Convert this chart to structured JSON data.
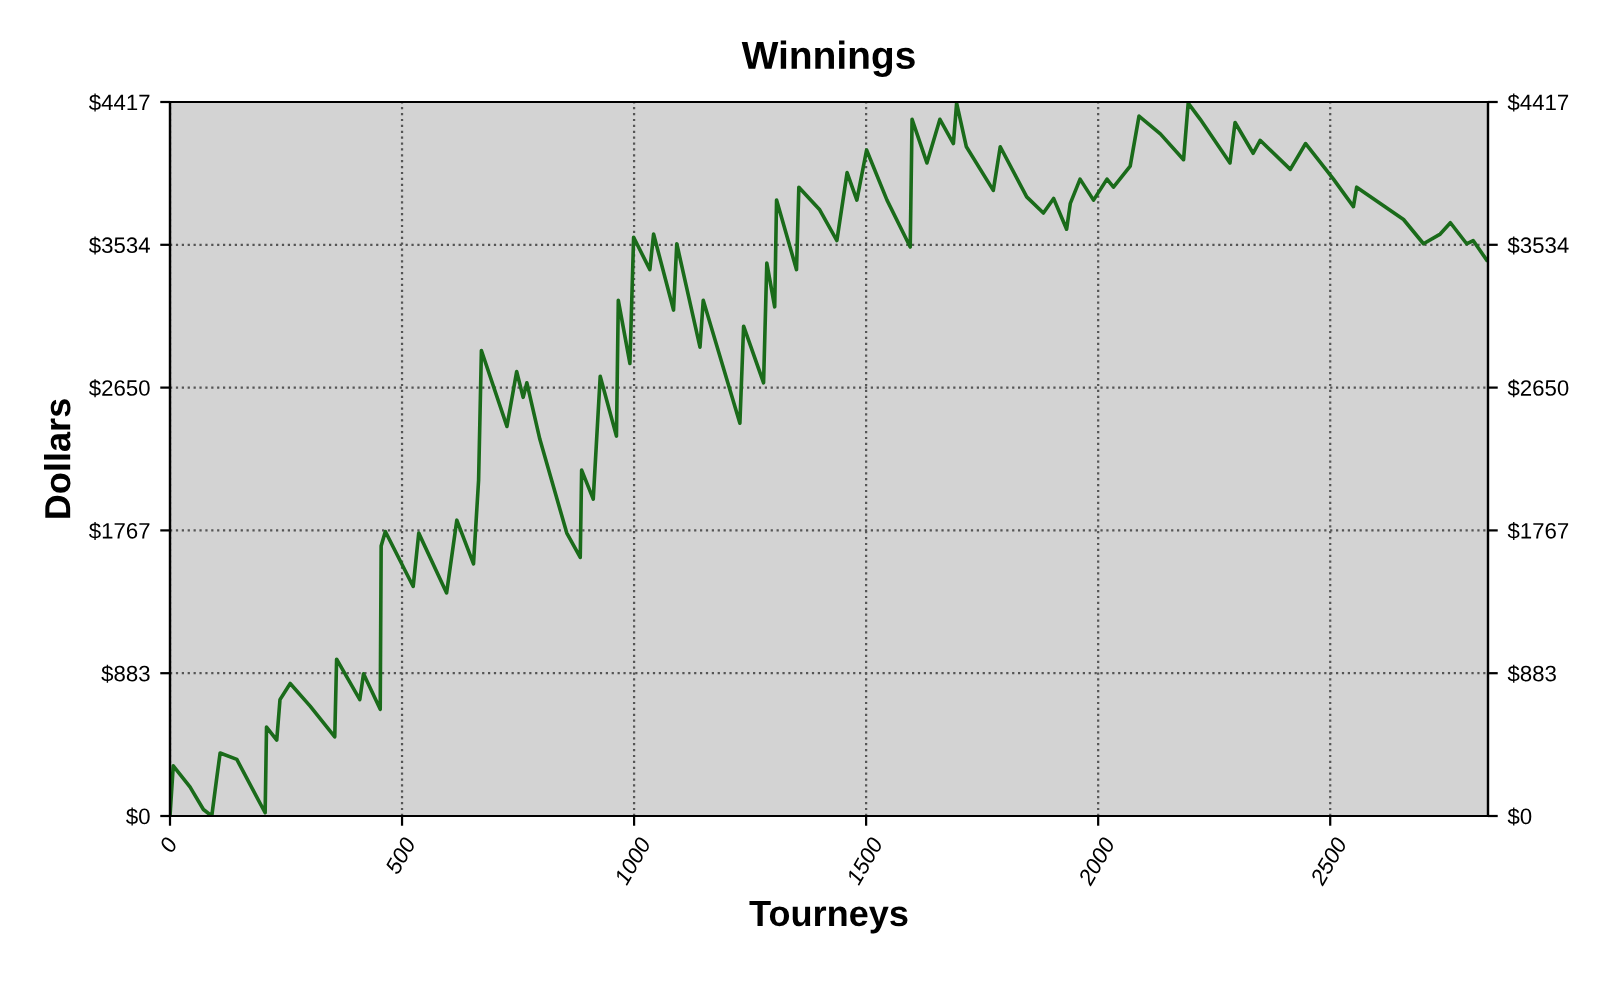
{
  "chart_data": {
    "type": "line",
    "title": "Winnings",
    "xlabel": "Tourneys",
    "ylabel": "Dollars",
    "x": [
      0,
      7,
      43,
      72,
      90,
      100,
      108,
      144,
      205,
      208,
      230,
      237,
      259,
      302,
      355,
      359,
      409,
      417,
      453,
      455,
      464,
      524,
      536,
      596,
      618,
      654,
      665,
      671,
      726,
      747,
      761,
      769,
      797,
      855,
      884,
      887,
      912,
      927,
      962,
      966,
      991,
      999,
      1034,
      1042,
      1085,
      1092,
      1142,
      1149,
      1228,
      1236,
      1279,
      1286,
      1303,
      1307,
      1350,
      1355,
      1400,
      1437,
      1459,
      1480,
      1501,
      1545,
      1595,
      1599,
      1631,
      1659,
      1688,
      1695,
      1716,
      1774,
      1789,
      1846,
      1882,
      1904,
      1932,
      1940,
      1961,
      1990,
      2019,
      2033,
      2069,
      2088,
      2134,
      2184,
      2194,
      2220,
      2284,
      2295,
      2334,
      2349,
      2414,
      2447,
      2507,
      2550,
      2557,
      2658,
      2701,
      2737,
      2759,
      2794,
      2808,
      2837
    ],
    "series": [
      {
        "color": "#1a6b1a",
        "values": [
          0,
          310,
          180,
          40,
          0,
          220,
          390,
          350,
          20,
          550,
          470,
          720,
          820,
          680,
          490,
          970,
          720,
          880,
          660,
          1670,
          1760,
          1420,
          1750,
          1380,
          1830,
          1560,
          2080,
          2880,
          2410,
          2750,
          2590,
          2680,
          2330,
          1750,
          1600,
          2140,
          1960,
          2720,
          2350,
          3190,
          2800,
          3580,
          3380,
          3600,
          3130,
          3540,
          2900,
          3190,
          2430,
          3030,
          2680,
          3420,
          3150,
          3810,
          3380,
          3890,
          3750,
          3560,
          3980,
          3810,
          4120,
          3810,
          3520,
          4310,
          4040,
          4310,
          4160,
          4410,
          4140,
          3870,
          4140,
          3830,
          3730,
          3820,
          3630,
          3790,
          3940,
          3810,
          3940,
          3890,
          4020,
          4330,
          4220,
          4060,
          4410,
          4310,
          4040,
          4290,
          4100,
          4180,
          4000,
          4160,
          3940,
          3770,
          3890,
          3690,
          3540,
          3600,
          3670,
          3540,
          3560,
          3440
        ]
      }
    ],
    "xlim": [
      0,
      2840
    ],
    "xticks": [
      0,
      500,
      1000,
      1500,
      2000,
      2500
    ],
    "ylim": [
      0,
      4417
    ],
    "yticks": [
      {
        "value": 0,
        "label": "$0"
      },
      {
        "value": 883.4,
        "label": "$883"
      },
      {
        "value": 1766.8,
        "label": "$1767"
      },
      {
        "value": 2650.2,
        "label": "$2650"
      },
      {
        "value": 3533.6,
        "label": "$3534"
      },
      {
        "value": 4417,
        "label": "$4417"
      }
    ],
    "y2lim": [
      0,
      4417
    ],
    "y2ticks": [
      {
        "value": 0,
        "label": "$0"
      },
      {
        "value": 883.4,
        "label": "$883"
      },
      {
        "value": 1766.8,
        "label": "$1767"
      },
      {
        "value": 2650.2,
        "label": "$2650"
      },
      {
        "value": 3533.6,
        "label": "$3534"
      },
      {
        "value": 4417,
        "label": "$4417"
      }
    ],
    "grid": true,
    "marker": "none",
    "line_style": "solid"
  }
}
